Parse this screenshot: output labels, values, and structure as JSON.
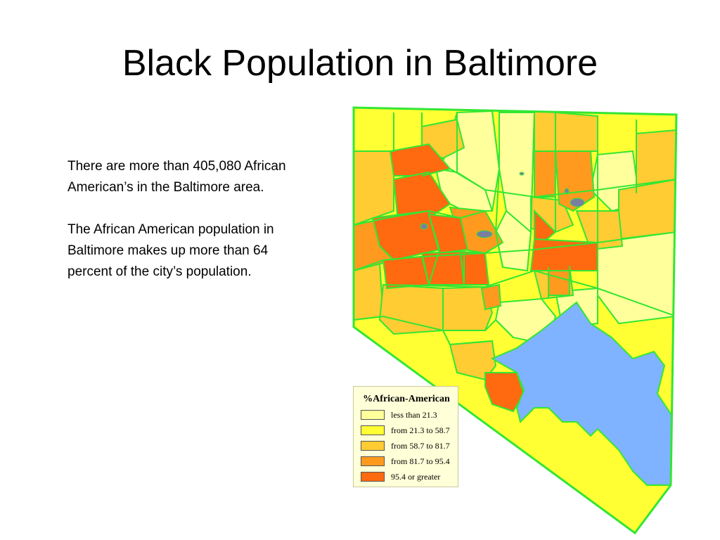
{
  "slide": {
    "title": "Black Population in Baltimore",
    "paragraphs": [
      "There are more than 405,080 African American’s in the Baltimore area.",
      "The African American population in Baltimore makes up more than 64 percent of the city’s population."
    ]
  },
  "map": {
    "colors": {
      "boundary": "#33e633",
      "water": "#7fb2ff",
      "lake": "#7a7fa0",
      "class1": "#ffff9c",
      "class2": "#ffff33",
      "class3": "#ffcc33",
      "class4": "#ff9a1f",
      "class5": "#ff6a10"
    },
    "legend": {
      "title": "%African-American",
      "items": [
        {
          "label": "less than 21.3",
          "color": "#ffff9c"
        },
        {
          "label": "from 21.3 to 58.7",
          "color": "#ffff33"
        },
        {
          "label": "from 58.7 to 81.7",
          "color": "#ffcc33"
        },
        {
          "label": "from 81.7 to 95.4",
          "color": "#ff9a1f"
        },
        {
          "label": "95.4 or greater",
          "color": "#ff6a10"
        }
      ]
    }
  }
}
